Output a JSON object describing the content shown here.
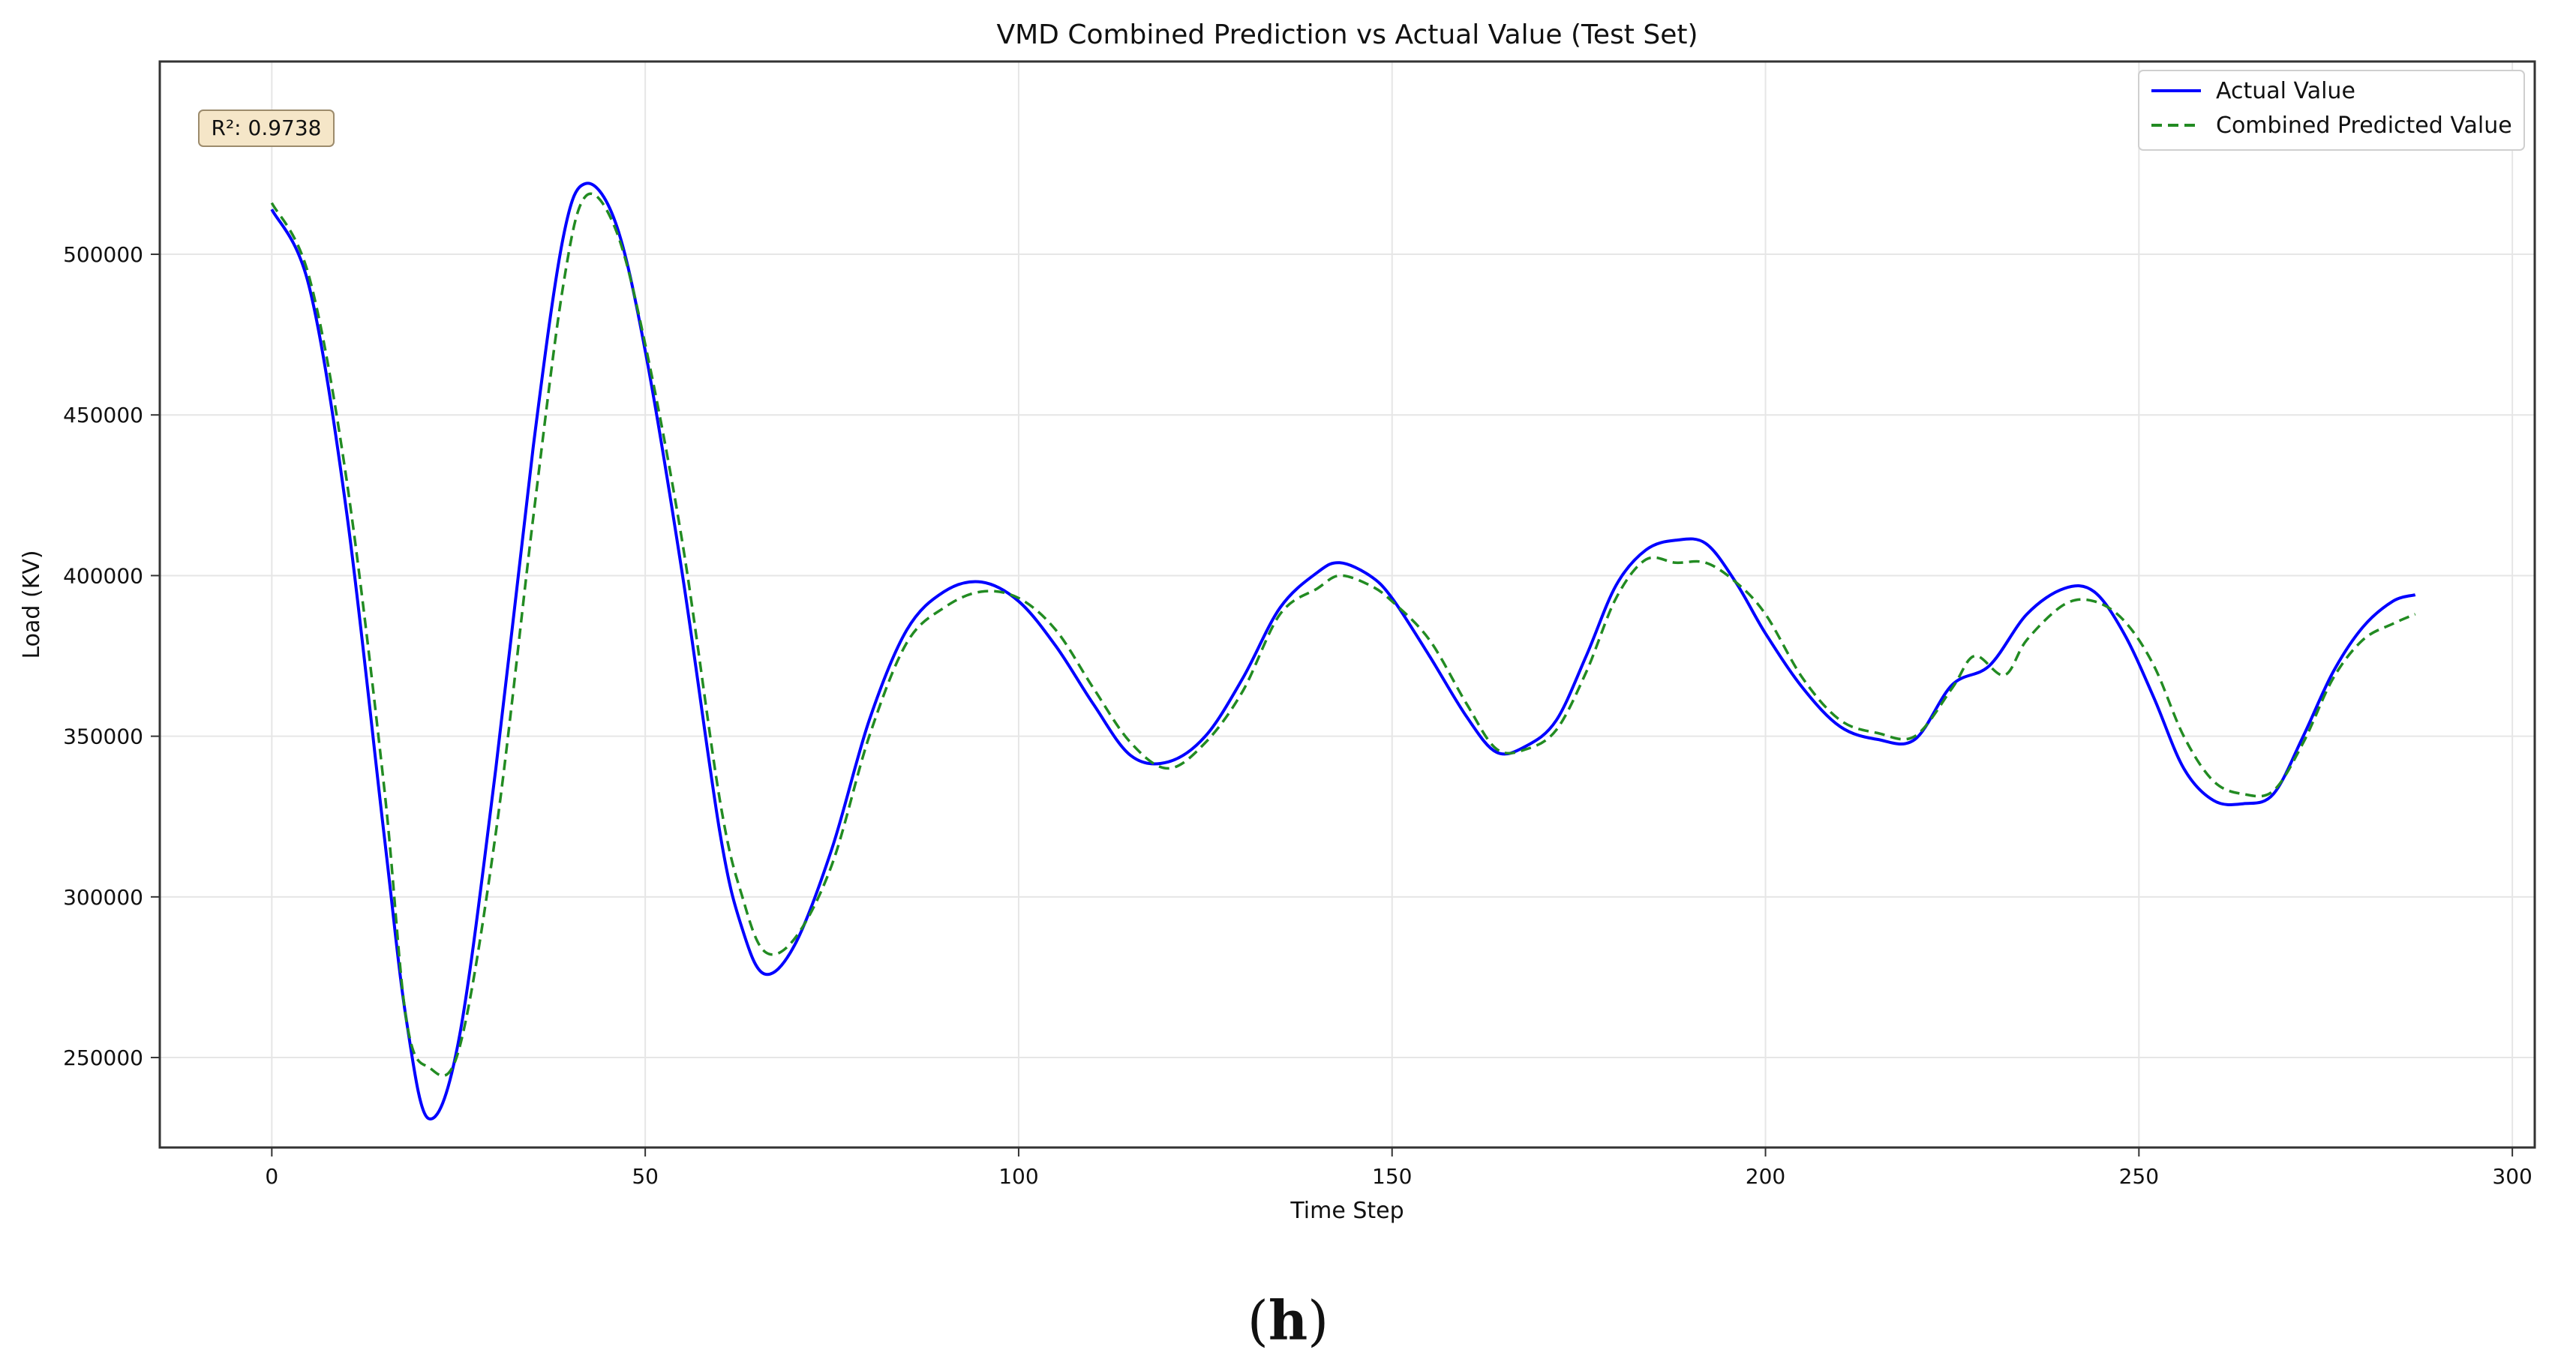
{
  "chart_data": {
    "type": "line",
    "title": "VMD Combined Prediction vs Actual Value (Test Set)",
    "xlabel": "Time Step",
    "ylabel": "Load (KV)",
    "xlim": [
      -15,
      303
    ],
    "ylim": [
      222000,
      560000
    ],
    "xticks": [
      0,
      50,
      100,
      150,
      200,
      250,
      300
    ],
    "yticks": [
      250000,
      300000,
      350000,
      400000,
      450000,
      500000
    ],
    "grid": true,
    "legend_position": "top-right",
    "annotation": "R²: 0.9738",
    "series": [
      {
        "name": "Actual Value",
        "color": "#0000ff",
        "style": "solid",
        "points": [
          [
            0,
            514000
          ],
          [
            5,
            490000
          ],
          [
            10,
            420000
          ],
          [
            15,
            320000
          ],
          [
            18,
            262000
          ],
          [
            21,
            231000
          ],
          [
            25,
            255000
          ],
          [
            30,
            340000
          ],
          [
            35,
            440000
          ],
          [
            39,
            505000
          ],
          [
            42,
            522000
          ],
          [
            46,
            510000
          ],
          [
            50,
            470000
          ],
          [
            55,
            400000
          ],
          [
            60,
            320000
          ],
          [
            63,
            290000
          ],
          [
            66,
            276000
          ],
          [
            70,
            285000
          ],
          [
            75,
            315000
          ],
          [
            80,
            355000
          ],
          [
            85,
            383000
          ],
          [
            90,
            395000
          ],
          [
            95,
            398000
          ],
          [
            100,
            392000
          ],
          [
            105,
            378000
          ],
          [
            110,
            360000
          ],
          [
            115,
            344000
          ],
          [
            120,
            342000
          ],
          [
            125,
            350000
          ],
          [
            130,
            368000
          ],
          [
            135,
            390000
          ],
          [
            140,
            401000
          ],
          [
            143,
            404000
          ],
          [
            147,
            400000
          ],
          [
            150,
            393000
          ],
          [
            155,
            375000
          ],
          [
            160,
            356000
          ],
          [
            164,
            345000
          ],
          [
            168,
            347000
          ],
          [
            172,
            355000
          ],
          [
            176,
            375000
          ],
          [
            180,
            397000
          ],
          [
            184,
            408000
          ],
          [
            188,
            411000
          ],
          [
            192,
            410000
          ],
          [
            196,
            398000
          ],
          [
            200,
            382000
          ],
          [
            205,
            365000
          ],
          [
            210,
            353000
          ],
          [
            215,
            349000
          ],
          [
            220,
            349000
          ],
          [
            225,
            366000
          ],
          [
            230,
            372000
          ],
          [
            235,
            388000
          ],
          [
            240,
            396000
          ],
          [
            244,
            395000
          ],
          [
            248,
            382000
          ],
          [
            252,
            362000
          ],
          [
            256,
            340000
          ],
          [
            260,
            330000
          ],
          [
            264,
            329000
          ],
          [
            268,
            332000
          ],
          [
            272,
            350000
          ],
          [
            276,
            370000
          ],
          [
            280,
            384000
          ],
          [
            284,
            392000
          ],
          [
            287,
            394000
          ]
        ]
      },
      {
        "name": "Combined Predicted Value",
        "color": "#228b22",
        "style": "dashed",
        "points": [
          [
            0,
            516000
          ],
          [
            5,
            493000
          ],
          [
            10,
            430000
          ],
          [
            15,
            335000
          ],
          [
            18,
            262000
          ],
          [
            21,
            247000
          ],
          [
            25,
            252000
          ],
          [
            30,
            320000
          ],
          [
            35,
            418000
          ],
          [
            39,
            490000
          ],
          [
            42,
            518000
          ],
          [
            46,
            508000
          ],
          [
            50,
            472000
          ],
          [
            55,
            410000
          ],
          [
            60,
            330000
          ],
          [
            63,
            300000
          ],
          [
            66,
            283000
          ],
          [
            70,
            287000
          ],
          [
            75,
            310000
          ],
          [
            80,
            350000
          ],
          [
            85,
            379000
          ],
          [
            90,
            390000
          ],
          [
            95,
            395000
          ],
          [
            100,
            393000
          ],
          [
            105,
            383000
          ],
          [
            110,
            365000
          ],
          [
            115,
            348000
          ],
          [
            120,
            340000
          ],
          [
            125,
            348000
          ],
          [
            130,
            364000
          ],
          [
            135,
            388000
          ],
          [
            140,
            396000
          ],
          [
            143,
            400000
          ],
          [
            147,
            397000
          ],
          [
            150,
            392000
          ],
          [
            155,
            380000
          ],
          [
            160,
            360000
          ],
          [
            164,
            346000
          ],
          [
            168,
            346000
          ],
          [
            172,
            352000
          ],
          [
            176,
            370000
          ],
          [
            180,
            393000
          ],
          [
            184,
            405000
          ],
          [
            188,
            404000
          ],
          [
            192,
            404000
          ],
          [
            196,
            398000
          ],
          [
            200,
            388000
          ],
          [
            205,
            368000
          ],
          [
            210,
            355000
          ],
          [
            215,
            351000
          ],
          [
            220,
            350000
          ],
          [
            225,
            365000
          ],
          [
            228,
            375000
          ],
          [
            232,
            369000
          ],
          [
            235,
            380000
          ],
          [
            240,
            391000
          ],
          [
            244,
            392000
          ],
          [
            248,
            386000
          ],
          [
            252,
            372000
          ],
          [
            256,
            350000
          ],
          [
            260,
            336000
          ],
          [
            264,
            332000
          ],
          [
            268,
            333000
          ],
          [
            272,
            348000
          ],
          [
            276,
            368000
          ],
          [
            280,
            380000
          ],
          [
            284,
            385000
          ],
          [
            287,
            388000
          ]
        ]
      }
    ]
  },
  "figure": {
    "panel_label": "h"
  }
}
